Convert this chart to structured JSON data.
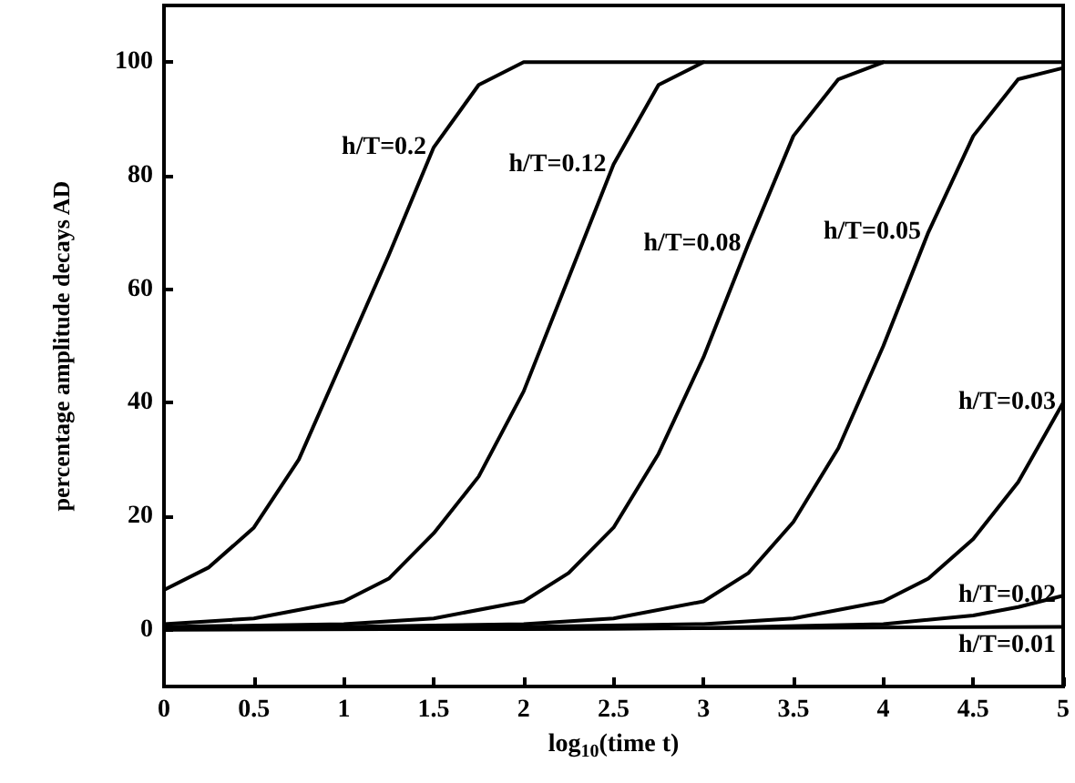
{
  "chart_data": {
    "type": "line",
    "xlabel": "log$_{10}$(time t)",
    "ylabel": "percentage amplitude decays AD",
    "xlim": [
      0,
      5
    ],
    "xticks": [
      0,
      0.5,
      1,
      1.5,
      2,
      2.5,
      3,
      3.5,
      4,
      4.5,
      5
    ],
    "ylim": [
      -10,
      110
    ],
    "yticks": [
      0,
      20,
      40,
      60,
      80,
      100
    ],
    "grid": false,
    "marker": "none",
    "line_style": "solid",
    "series": [
      {
        "color": "#000000",
        "x": [
          0,
          0.25,
          0.5,
          0.75,
          1,
          1.25,
          1.5,
          1.75,
          2,
          2.5,
          3
        ],
        "values": [
          7,
          11,
          18,
          30,
          48,
          66,
          85,
          96,
          100,
          100,
          100
        ]
      },
      {
        "color": "#000000",
        "x": [
          0,
          0.5,
          1,
          1.25,
          1.5,
          1.75,
          2,
          2.25,
          2.5,
          2.75,
          3,
          3.5,
          4
        ],
        "values": [
          1,
          2,
          5,
          9,
          17,
          27,
          42,
          62,
          82,
          96,
          100,
          100,
          100
        ]
      },
      {
        "color": "#000000",
        "x": [
          0,
          1,
          1.5,
          2,
          2.25,
          2.5,
          2.75,
          3,
          3.25,
          3.5,
          3.75,
          4,
          4.5,
          5
        ],
        "values": [
          0.5,
          1,
          2,
          5,
          10,
          18,
          31,
          48,
          68,
          87,
          97,
          100,
          100,
          100
        ]
      },
      {
        "color": "#000000",
        "x": [
          0,
          1,
          2,
          2.5,
          3,
          3.25,
          3.5,
          3.75,
          4,
          4.25,
          4.5,
          4.75,
          5
        ],
        "values": [
          0.3,
          0.5,
          1,
          2,
          5,
          10,
          19,
          32,
          50,
          70,
          87,
          97,
          99
        ]
      },
      {
        "color": "#000000",
        "x": [
          0,
          1,
          2,
          3,
          3.5,
          4,
          4.25,
          4.5,
          4.75,
          5
        ],
        "values": [
          0.2,
          0.3,
          0.5,
          1,
          2,
          5,
          9,
          16,
          26,
          40
        ]
      },
      {
        "color": "#000000",
        "x": [
          0,
          2,
          3,
          4,
          4.5,
          4.75,
          5
        ],
        "values": [
          0.1,
          0.1,
          0.3,
          1,
          2.5,
          4,
          6
        ]
      },
      {
        "color": "#000000",
        "x": [
          0,
          2.5,
          5
        ],
        "values": [
          0,
          0.2,
          0.5
        ]
      }
    ],
    "annotations": [
      {
        "text": "h/T=0.2",
        "x": 1.5,
        "y": 85
      },
      {
        "text": "h/T=0.12",
        "x": 2.5,
        "y": 82
      },
      {
        "text": "h/T=0.08",
        "x": 3.25,
        "y": 68
      },
      {
        "text": "h/T=0.05",
        "x": 4.25,
        "y": 70
      },
      {
        "text": "h/T=0.03",
        "x": 5,
        "y": 40
      },
      {
        "text": "h/T=0.02",
        "x": 5,
        "y": 6
      },
      {
        "text": "h/T=0.01",
        "x": 5,
        "y": 0.5
      }
    ]
  }
}
